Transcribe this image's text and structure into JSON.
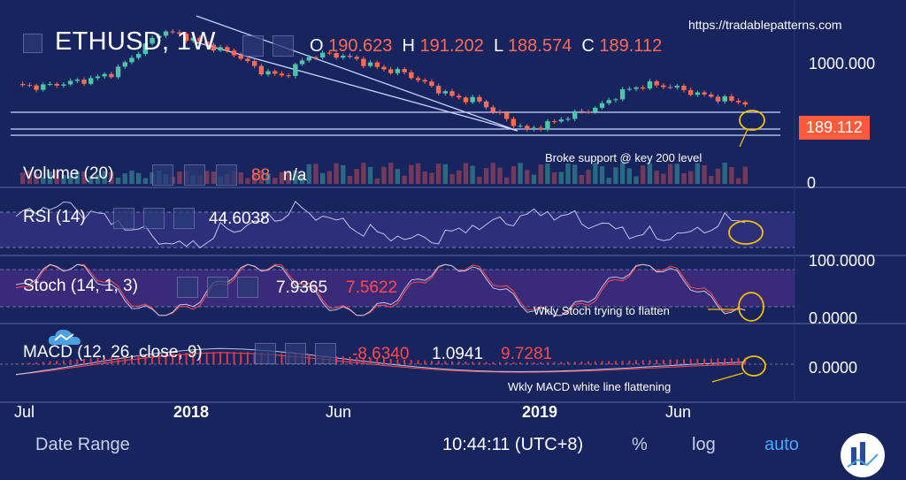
{
  "header": {
    "symbol_interval": "ETHUSD, 1W",
    "o_label": "O",
    "o_value": "190.623",
    "h_label": "H",
    "h_value": "191.202",
    "l_label": "L",
    "l_value": "188.574",
    "c_label": "C",
    "c_value": "189.112"
  },
  "watermark": "https://tradablepatterns.com",
  "price_axis": {
    "tick_1000": "1000.000",
    "last_price": "189.112"
  },
  "annotations": {
    "support": "Broke support @ key 200 level",
    "stoch": "Wkly Stoch trying to flatten",
    "macd": "Wkly MACD white line flattening"
  },
  "panes": {
    "volume": {
      "label": "Volume (20)",
      "value": "88",
      "value2": "n/a",
      "axis_tick": "0"
    },
    "rsi": {
      "label": "RSI (14)",
      "value": "44.6038"
    },
    "stoch": {
      "label": "Stoch (14, 1, 3)",
      "k": "7.9365",
      "d": "7.5622",
      "axis_top": "100.0000",
      "axis_bottom": "0.0000"
    },
    "macd": {
      "label": "MACD (12, 26, close, 9)",
      "hist": "-8.6340",
      "macd": "1.0941",
      "signal": "9.7281",
      "axis_tick": "0.0000"
    }
  },
  "time_axis": [
    "Jul",
    "2018",
    "Jun",
    "2019",
    "Jun"
  ],
  "footer": {
    "date_range": "Date Range",
    "clock": "10:44:11 (UTC+8)",
    "pct": "%",
    "log": "log",
    "auto": "auto"
  },
  "colors": {
    "background": "#17245e",
    "up": "#4cc6a8",
    "down": "#ff6a50",
    "accent": "#ff5a3c",
    "circle": "#f2c200"
  },
  "chart_data": {
    "type": "candlestick",
    "title": "ETHUSD, 1W",
    "price_axis_scale": "log",
    "x": [
      "Jul 2017",
      "2018",
      "Jun 2018",
      "2019",
      "Jun 2019"
    ],
    "close_series_approx": [
      300,
      290,
      320,
      350,
      420,
      720,
      1300,
      1100,
      850,
      700,
      450,
      380,
      650,
      700,
      600,
      470,
      420,
      300,
      220,
      200,
      130,
      90,
      110,
      140,
      170,
      260,
      310,
      290,
      240,
      210,
      189.112
    ],
    "last": {
      "open": 190.623,
      "high": 191.202,
      "low": 188.574,
      "close": 189.112
    },
    "indicators": {
      "volume": 88,
      "rsi_14": 44.6038,
      "stoch_k": 7.9365,
      "stoch_d": 7.5622,
      "macd_hist": -8.634,
      "macd": 1.0941,
      "macd_signal": 9.7281
    }
  }
}
